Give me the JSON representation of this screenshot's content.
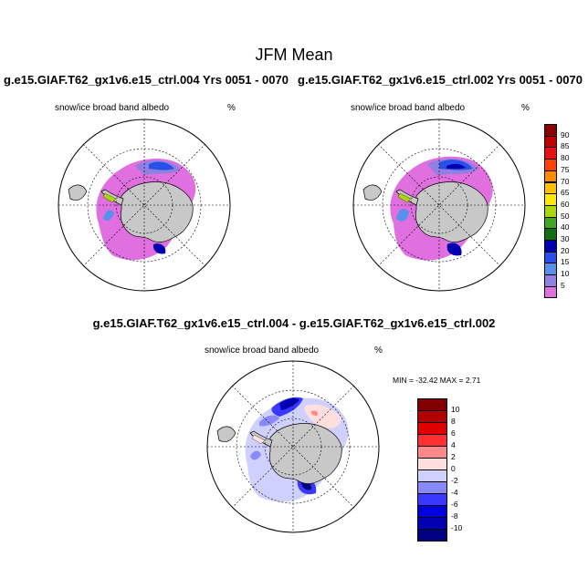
{
  "title": "JFM Mean",
  "panels": {
    "left": {
      "case": "g.e15.GIAF.T62_gx1v6.e15_ctrl.004  Yrs 0051 - 0070",
      "variable": "snow/ice broad band albedo",
      "units": "%"
    },
    "right": {
      "case": "g.e15.GIAF.T62_gx1v6.e15_ctrl.002  Yrs 0051 - 0070",
      "variable": "snow/ice broad band albedo",
      "units": "%"
    },
    "difference": {
      "title": "g.e15.GIAF.T62_gx1v6.e15_ctrl.004 - g.e15.GIAF.T62_gx1v6.e15_ctrl.002",
      "variable": "snow/ice broad band albedo",
      "units": "%",
      "minmax": "MIN = -32.42 MAX =   2.71"
    }
  },
  "colorbars": {
    "mean": {
      "labels": [
        "90",
        "85",
        "80",
        "75",
        "70",
        "65",
        "60",
        "50",
        "40",
        "30",
        "20",
        "15",
        "10",
        "5"
      ],
      "colors": [
        "#8b0000",
        "#c00000",
        "#e81010",
        "#ff4000",
        "#ff8c00",
        "#ffc000",
        "#ffe800",
        "#a8d800",
        "#40a820",
        "#107010",
        "#0000b0",
        "#2850e8",
        "#5890f0",
        "#9080e0",
        "#e070e0"
      ]
    },
    "diff": {
      "labels": [
        "10",
        "8",
        "6",
        "4",
        "2",
        "0",
        "-2",
        "-4",
        "-6",
        "-8",
        "-10"
      ],
      "colors": [
        "#800000",
        "#b00000",
        "#e00000",
        "#ff3030",
        "#ff8888",
        "#ffdede",
        "#d0d0ff",
        "#8888ff",
        "#3838ff",
        "#0000e0",
        "#0000b0",
        "#000080"
      ]
    }
  }
}
